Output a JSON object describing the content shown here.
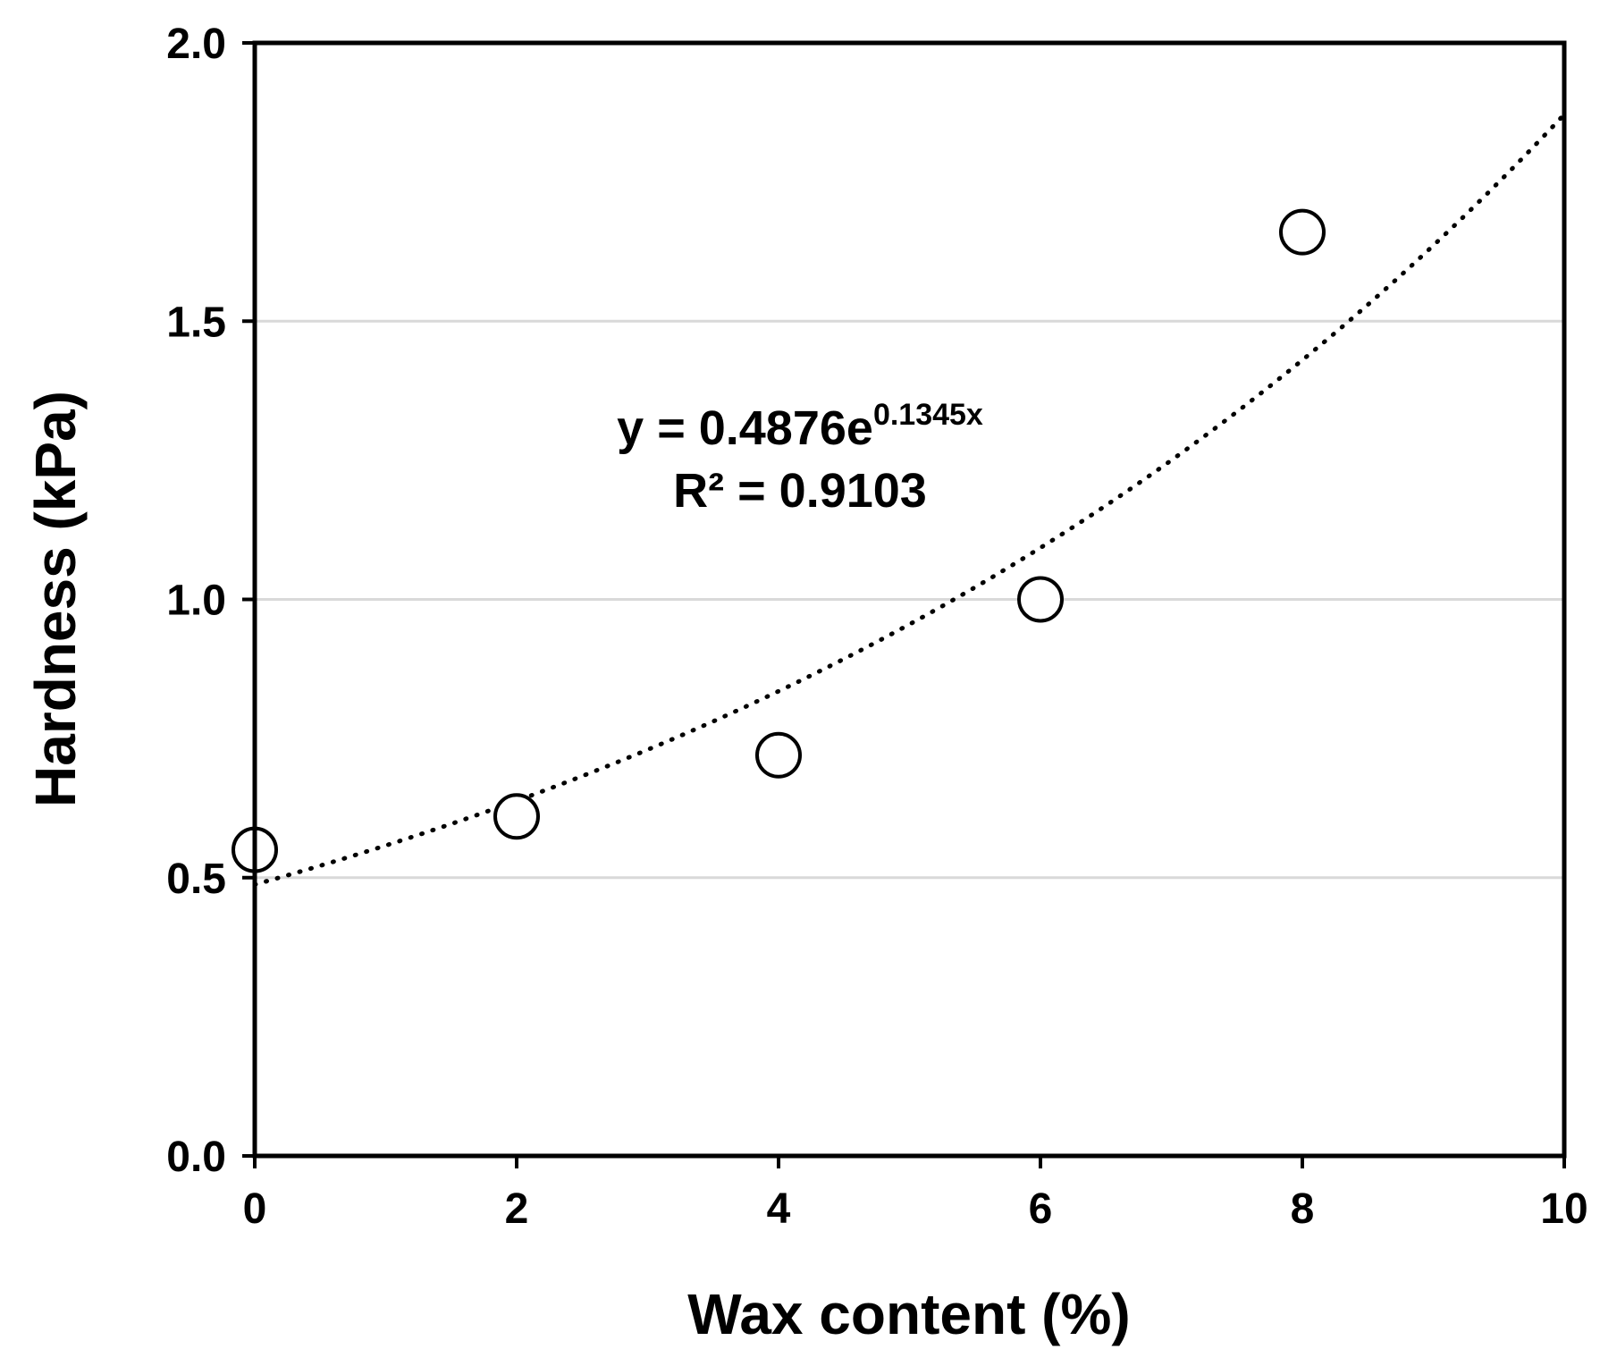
{
  "chart_data": {
    "type": "scatter",
    "title": "",
    "xlabel": "Wax content (%)",
    "ylabel": "Hardness (kPa)",
    "xlim": [
      0,
      10
    ],
    "ylim": [
      0.0,
      2.0
    ],
    "x_ticks": [
      "0",
      "2",
      "4",
      "6",
      "8",
      "10"
    ],
    "y_ticks": [
      "0.0",
      "0.5",
      "1.0",
      "1.5",
      "2.0"
    ],
    "grid": "horizontal",
    "legend": "none",
    "marker": "open-circle",
    "series": [
      {
        "x": [
          0,
          2,
          4,
          6,
          8
        ],
        "y": [
          0.55,
          0.61,
          0.72,
          1.0,
          1.66
        ]
      }
    ],
    "trendline": {
      "type": "exponential",
      "a": 0.4876,
      "b": 0.1345,
      "style": "dotted",
      "x_range": [
        0,
        10
      ]
    },
    "annotation": {
      "equation_main": "y = 0.4876e",
      "equation_exponent": "0.1345x",
      "r_squared": "R² = 0.9103"
    },
    "colors": {
      "axis": "#000000",
      "grid": "#d9d9d9",
      "marker": "#000000",
      "trend": "#000000"
    }
  }
}
